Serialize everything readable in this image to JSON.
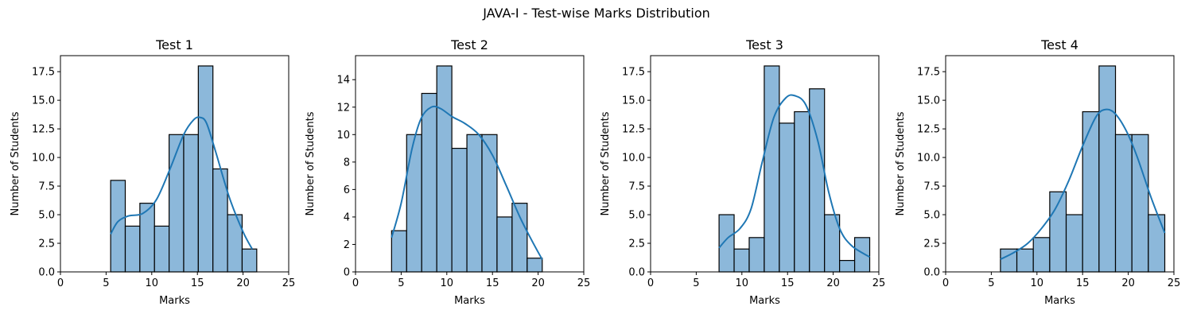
{
  "figure": {
    "suptitle": "JAVA-I - Test-wise Marks Distribution"
  },
  "chart_data": [
    {
      "type": "bar",
      "title": "Test 1",
      "xlabel": "Marks",
      "ylabel": "Number of Students",
      "xlim": [
        0,
        25
      ],
      "ylim": [
        0,
        18.9
      ],
      "xticks": [
        "0",
        "5",
        "10",
        "15",
        "20",
        "25"
      ],
      "yticks": [
        "0.0",
        "2.5",
        "5.0",
        "7.5",
        "10.0",
        "12.5",
        "15.0",
        "17.5"
      ],
      "bins": [
        [
          5.5,
          7.1
        ],
        [
          7.1,
          8.7
        ],
        [
          8.7,
          10.3
        ],
        [
          10.3,
          11.9
        ],
        [
          11.9,
          13.5
        ],
        [
          13.5,
          15.1
        ],
        [
          15.1,
          16.7
        ],
        [
          16.7,
          18.3
        ],
        [
          18.3,
          19.9
        ],
        [
          19.9,
          21.5
        ]
      ],
      "values": [
        8,
        4,
        6,
        4,
        12,
        12,
        18,
        9,
        5,
        2
      ],
      "kde": [
        [
          5.5,
          3.3
        ],
        [
          6.3,
          4.4
        ],
        [
          7.5,
          4.9
        ],
        [
          9.0,
          5.1
        ],
        [
          10.5,
          6.3
        ],
        [
          12.0,
          9.0
        ],
        [
          13.5,
          12.0
        ],
        [
          14.6,
          13.3
        ],
        [
          15.3,
          13.5
        ],
        [
          16.0,
          13.0
        ],
        [
          17.0,
          10.5
        ],
        [
          18.5,
          6.5
        ],
        [
          20.0,
          3.5
        ],
        [
          21.0,
          2.0
        ]
      ]
    },
    {
      "type": "bar",
      "title": "Test 2",
      "xlabel": "Marks",
      "ylabel": "Number of Students",
      "xlim": [
        0,
        25
      ],
      "ylim": [
        0,
        15.75
      ],
      "xticks": [
        "0",
        "5",
        "10",
        "15",
        "20",
        "25"
      ],
      "yticks": [
        "0",
        "2",
        "4",
        "6",
        "8",
        "10",
        "12",
        "14"
      ],
      "bins": [
        [
          3.95,
          5.6
        ],
        [
          5.6,
          7.25
        ],
        [
          7.25,
          8.9
        ],
        [
          8.9,
          10.55
        ],
        [
          10.55,
          12.2
        ],
        [
          12.2,
          13.85
        ],
        [
          13.85,
          15.5
        ],
        [
          15.5,
          17.15
        ],
        [
          17.15,
          18.8
        ],
        [
          18.8,
          20.45
        ]
      ],
      "values": [
        3,
        10,
        13,
        15,
        9,
        10,
        10,
        4,
        5,
        1
      ],
      "kde": [
        [
          3.95,
          2.5
        ],
        [
          5.0,
          5.0
        ],
        [
          6.2,
          9.0
        ],
        [
          7.2,
          11.2
        ],
        [
          8.3,
          12.0
        ],
        [
          9.3,
          11.9
        ],
        [
          10.6,
          11.3
        ],
        [
          12.0,
          10.8
        ],
        [
          13.5,
          10.0
        ],
        [
          15.0,
          8.5
        ],
        [
          16.5,
          6.3
        ],
        [
          18.0,
          4.0
        ],
        [
          19.3,
          2.3
        ],
        [
          20.45,
          0.9
        ]
      ]
    },
    {
      "type": "bar",
      "title": "Test 3",
      "xlabel": "Marks",
      "ylabel": "Number of Students",
      "xlim": [
        0,
        25
      ],
      "ylim": [
        0,
        18.9
      ],
      "xticks": [
        "0",
        "5",
        "10",
        "15",
        "20",
        "25"
      ],
      "yticks": [
        "0.0",
        "2.5",
        "5.0",
        "7.5",
        "10.0",
        "12.5",
        "15.0",
        "17.5"
      ],
      "bins": [
        [
          7.5,
          9.15
        ],
        [
          9.15,
          10.8
        ],
        [
          10.8,
          12.45
        ],
        [
          12.45,
          14.1
        ],
        [
          14.1,
          15.75
        ],
        [
          15.75,
          17.4
        ],
        [
          17.4,
          19.05
        ],
        [
          19.05,
          20.7
        ],
        [
          20.7,
          22.35
        ],
        [
          22.35,
          24.0
        ]
      ],
      "values": [
        5,
        2,
        3,
        18,
        13,
        14,
        16,
        5,
        1,
        3
      ],
      "kde": [
        [
          7.5,
          2.1
        ],
        [
          8.5,
          3.0
        ],
        [
          9.8,
          3.8
        ],
        [
          11.0,
          5.5
        ],
        [
          12.2,
          9.5
        ],
        [
          13.5,
          13.5
        ],
        [
          14.8,
          15.2
        ],
        [
          15.8,
          15.4
        ],
        [
          17.0,
          14.6
        ],
        [
          18.3,
          11.5
        ],
        [
          19.5,
          7.0
        ],
        [
          20.7,
          3.8
        ],
        [
          22.0,
          2.3
        ],
        [
          24.0,
          1.3
        ]
      ]
    },
    {
      "type": "bar",
      "title": "Test 4",
      "xlabel": "Marks",
      "ylabel": "Number of Students",
      "xlim": [
        0,
        25
      ],
      "ylim": [
        0,
        18.9
      ],
      "xticks": [
        "0",
        "5",
        "10",
        "15",
        "20",
        "25"
      ],
      "yticks": [
        "0.0",
        "2.5",
        "5.0",
        "7.5",
        "10.0",
        "12.5",
        "15.0",
        "17.5"
      ],
      "bins": [
        [
          6.0,
          7.8
        ],
        [
          7.8,
          9.6
        ],
        [
          9.6,
          11.4
        ],
        [
          11.4,
          13.2
        ],
        [
          13.2,
          15.0
        ],
        [
          15.0,
          16.8
        ],
        [
          16.8,
          18.6
        ],
        [
          18.6,
          20.4
        ],
        [
          20.4,
          22.2
        ],
        [
          22.2,
          24.0
        ]
      ],
      "values": [
        2,
        2,
        3,
        7,
        5,
        14,
        18,
        12,
        12,
        5
      ],
      "kde": [
        [
          6.0,
          1.1
        ],
        [
          7.5,
          1.7
        ],
        [
          9.0,
          2.5
        ],
        [
          10.5,
          3.8
        ],
        [
          12.0,
          5.5
        ],
        [
          13.5,
          8.0
        ],
        [
          15.0,
          11.0
        ],
        [
          16.5,
          13.6
        ],
        [
          17.6,
          14.2
        ],
        [
          18.6,
          13.8
        ],
        [
          19.8,
          12.3
        ],
        [
          21.0,
          10.0
        ],
        [
          22.5,
          6.5
        ],
        [
          24.0,
          3.4
        ]
      ]
    }
  ]
}
